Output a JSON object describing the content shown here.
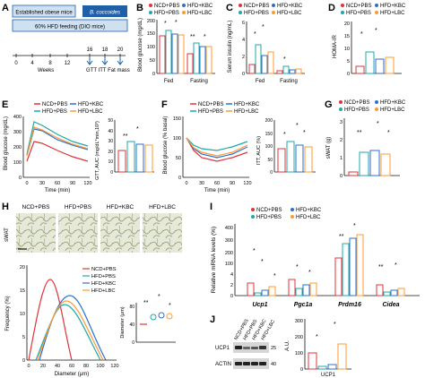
{
  "colors": {
    "ncd": "#e0333a",
    "kbc": "#2b6fd1",
    "lbc": "#ff9a30",
    "pbs": "#1fa8a8",
    "green": "#1f8a4a",
    "timeline": "#1f5fa8",
    "box": "#cfe0f1"
  },
  "panels": {
    "A": {
      "letter": "A",
      "box1": "Established obese mice",
      "box2": "B. coccoides",
      "bar": "60% HFD feeding (DIO mice)",
      "weeks_label": "Weeks",
      "ticks": [
        "0",
        "4",
        "8",
        "12",
        "16",
        "18",
        "20"
      ],
      "events": "GTT ITT Fat mass"
    },
    "B": {
      "letter": "B",
      "ylabel": "Blood glucose\n(mg/dL)",
      "legend": [
        "NCD+PBS",
        "HFD+KBC",
        "HFD+PBS",
        "HFD+LBC"
      ],
      "groups": [
        "Fed",
        "Fasting"
      ],
      "yticks": [
        "0",
        "50",
        "100",
        "150",
        "200"
      ],
      "stars": [
        "*",
        "*",
        "**",
        "*"
      ]
    },
    "C": {
      "letter": "C",
      "ylabel": "Serum insulin\n(ng/mL)",
      "legend": [
        "NCD+PBS",
        "HFD+KBC",
        "HFD+PBS",
        "HFD+LBC"
      ],
      "groups": [
        "Fed",
        "Fasting"
      ],
      "yticks": [
        "0",
        "2",
        "4",
        "6"
      ],
      "stars": [
        "*",
        "*",
        "*"
      ]
    },
    "D": {
      "letter": "D",
      "ylabel": "HOMA-IR",
      "legend": [
        "NCD+PBS",
        "HFD+KBC",
        "HFD+PBS",
        "HFD+LBC"
      ],
      "yticks": [
        "0",
        "5",
        "10",
        "15",
        "20"
      ],
      "stars": [
        "*",
        "*"
      ]
    },
    "E": {
      "letter": "E",
      "ylabel": "Blood glucose (mg/dL)",
      "xlabel": "Time (min)",
      "legend": [
        "NCD+PBS",
        "HFD+KBC",
        "HFD+PBS",
        "HFD+LBC"
      ],
      "xticks": [
        "0",
        "30",
        "60",
        "90",
        "120"
      ],
      "yticks": [
        "0",
        "100",
        "200",
        "300",
        "400"
      ],
      "inset_ylabel": "GTT, AUC\n(mg/dL*min,10³)",
      "inset_yticks": [
        "0",
        "10",
        "20",
        "30",
        "40",
        "50"
      ],
      "stars": [
        "*",
        "**"
      ]
    },
    "F": {
      "letter": "F",
      "ylabel": "Blood glucose (% basal)",
      "xlabel": "Time (min)",
      "legend": [
        "NCD+PBS",
        "HFD+KBC",
        "HFD+PBS",
        "HFD+LBC"
      ],
      "xticks": [
        "0",
        "30",
        "60",
        "90",
        "120"
      ],
      "yticks": [
        "0",
        "50",
        "100",
        "150"
      ],
      "inset_ylabel": "ITT, AUC (%)",
      "inset_yticks": [
        "0",
        "50",
        "100",
        "150",
        "200"
      ],
      "stars": [
        "*",
        "*",
        "*"
      ]
    },
    "G": {
      "letter": "G",
      "ylabel": "sWAT (g)",
      "legend": [
        "NCD+PBS",
        "HFD+KBC",
        "HFD+PBS",
        "HFD+LBC"
      ],
      "yticks": [
        "0",
        "1",
        "2",
        "3"
      ],
      "stars": [
        "*",
        "**",
        "*"
      ]
    },
    "H": {
      "letter": "H",
      "labels": [
        "NCD+PBS",
        "HFD+PBS",
        "HFD+KBC",
        "HFD+LBC"
      ],
      "row": "sWAT",
      "ylabel": "Frequency (%)",
      "xlabel": "Diameter (μm)",
      "xticks": [
        "0",
        "20",
        "40",
        "60",
        "80",
        "100",
        "120"
      ],
      "yticks": [
        "0",
        "5",
        "10",
        "15",
        "20"
      ],
      "legend": [
        "NCD+PBS",
        "HFD+PBS",
        "HFD+KBC",
        "HFD+LBC"
      ],
      "inset_ylabel": "Diameter (μm)",
      "inset_yticks": [
        "0",
        "40",
        "80"
      ],
      "stars": [
        "**",
        "*",
        "*"
      ]
    },
    "I": {
      "letter": "I",
      "ylabel": "Relative mRNA\nlevels (%)",
      "legend": [
        "NCD+PBS",
        "HFD+KBC",
        "HFD+PBS",
        "HFD+LBC"
      ],
      "genes": [
        "Ucp1",
        "Pgc1a",
        "Prdm16",
        "Cidea"
      ],
      "yticks_low": [
        "0",
        "2",
        "4"
      ],
      "yticks_high": [
        "100",
        "200",
        "300",
        "400"
      ],
      "stars": [
        "*",
        "*",
        "*",
        "**",
        "*",
        "*",
        "*",
        "**",
        "*"
      ]
    },
    "J": {
      "letter": "J",
      "lanes": [
        "NCD+PBS",
        "HFD+PBS",
        "HFD+KBC",
        "HFD+LBC"
      ],
      "bands": [
        "UCP1",
        "ACTIN"
      ],
      "kda": [
        "25",
        "40"
      ],
      "ylabel": "A.U.",
      "yticks": [
        "0",
        "100",
        "200",
        "300"
      ],
      "xlabel": "UCP1",
      "stars": [
        "*",
        "*"
      ]
    }
  }
}
